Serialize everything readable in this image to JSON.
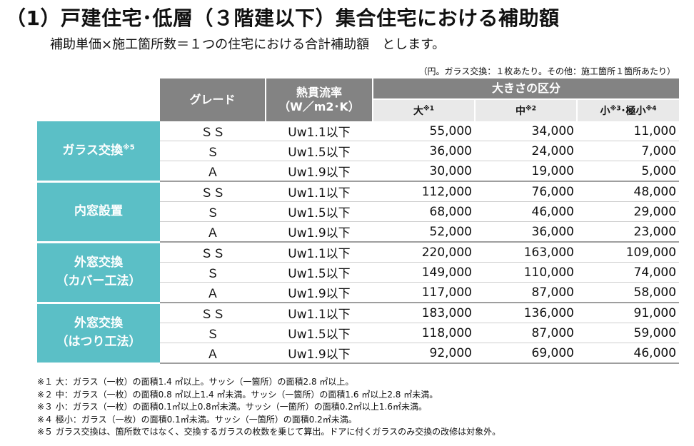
{
  "title": "（1）戸建住宅･低層（３階建以下）集合住宅における補助額",
  "subtitle": "補助単価×施工箇所数＝１つの住宅における合計補助額　とします。",
  "unit_note": "（円。ガラス交換：１枚あたり。その他：施工箇所１箇所あたり）",
  "header": {
    "grade": "グレード",
    "rate_line1": "熱貫流率",
    "rate_line2": "（W／m2･K）",
    "size_title": "大きさの区分",
    "large": "大",
    "large_mark": "※1",
    "medium": "中",
    "medium_mark": "※2",
    "small": "小",
    "small_mark": "※3",
    "small_sep": "･極小",
    "small_mark2": "※4"
  },
  "categories": [
    {
      "line1": "ガラス交換",
      "mark": "※5",
      "line2": "",
      "rows": [
        {
          "grade": "ＳＳ",
          "rate": "Uw1.1以下",
          "large": "55,000",
          "medium": "34,000",
          "small": "11,000"
        },
        {
          "grade": "Ｓ",
          "rate": "Uw1.5以下",
          "large": "36,000",
          "medium": "24,000",
          "small": "7,000"
        },
        {
          "grade": "Ａ",
          "rate": "Uw1.9以下",
          "large": "30,000",
          "medium": "19,000",
          "small": "5,000"
        }
      ]
    },
    {
      "line1": "内窓設置",
      "mark": "",
      "line2": "",
      "rows": [
        {
          "grade": "ＳＳ",
          "rate": "Uw1.1以下",
          "large": "112,000",
          "medium": "76,000",
          "small": "48,000"
        },
        {
          "grade": "Ｓ",
          "rate": "Uw1.5以下",
          "large": "68,000",
          "medium": "46,000",
          "small": "29,000"
        },
        {
          "grade": "Ａ",
          "rate": "Uw1.9以下",
          "large": "52,000",
          "medium": "36,000",
          "small": "23,000"
        }
      ]
    },
    {
      "line1": "外窓交換",
      "mark": "",
      "line2": "（カバー工法）",
      "rows": [
        {
          "grade": "ＳＳ",
          "rate": "Uw1.1以下",
          "large": "220,000",
          "medium": "163,000",
          "small": "109,000"
        },
        {
          "grade": "Ｓ",
          "rate": "Uw1.5以下",
          "large": "149,000",
          "medium": "110,000",
          "small": "74,000"
        },
        {
          "grade": "Ａ",
          "rate": "Uw1.9以下",
          "large": "117,000",
          "medium": "87,000",
          "small": "58,000"
        }
      ]
    },
    {
      "line1": "外窓交換",
      "mark": "",
      "line2": "（はつり工法）",
      "rows": [
        {
          "grade": "ＳＳ",
          "rate": "Uw1.1以下",
          "large": "183,000",
          "medium": "136,000",
          "small": "91,000"
        },
        {
          "grade": "Ｓ",
          "rate": "Uw1.5以下",
          "large": "118,000",
          "medium": "87,000",
          "small": "59,000"
        },
        {
          "grade": "Ａ",
          "rate": "Uw1.9以下",
          "large": "92,000",
          "medium": "69,000",
          "small": "46,000"
        }
      ]
    }
  ],
  "footnotes": [
    "※１ 大：ガラス（一枚）の面積1.4 ㎡以上。サッシ（一箇所）の面積2.8 ㎡以上。",
    "※２ 中：ガラス（一枚）の面積0.8 ㎡以上1.4 ㎡未満。サッシ（一箇所）の面積1.6 ㎡以上2.8 ㎡未満。",
    "※３ 小：ガラス（一枚）の面積0.1㎡以上0.8㎡未満。サッシ（一箇所）の面積0.2㎡以上1.6㎡未満。",
    "※４ 極小：ガラス（一枚）の面積0.1㎡未満。サッシ（一箇所）の面積0.2㎡未満。",
    "※５ ガラス交換は、箇所数ではなく、交換するガラスの枚数を乗じて算出。ドアに付くガラスのみ交換の改修は対象外。"
  ],
  "colors": {
    "header_gray": "#838383",
    "subheader_gray": "#e9e9e9",
    "category_teal": "#5bbfc6"
  }
}
